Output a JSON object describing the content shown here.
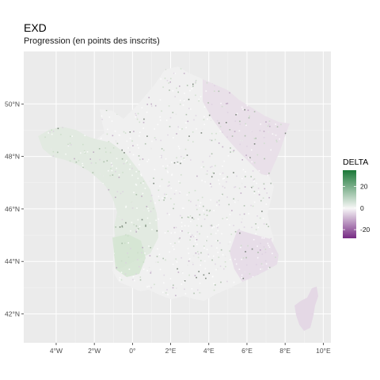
{
  "title": "EXD",
  "subtitle": "Progression (en points des inscrits)",
  "chart_data": {
    "type": "heatmap",
    "description_kind": "choropleth-map",
    "x_ticks": [
      "4°W",
      "2°W",
      "0°",
      "2°E",
      "4°E",
      "6°E",
      "8°E",
      "10°E"
    ],
    "x_tick_values": [
      -4,
      -2,
      0,
      2,
      4,
      6,
      8,
      10
    ],
    "y_ticks": [
      "42°N",
      "44°N",
      "46°N",
      "48°N",
      "50°N"
    ],
    "y_tick_values": [
      42,
      44,
      46,
      48,
      50
    ],
    "xlim": [
      -5.7,
      10.4
    ],
    "ylim": [
      40.9,
      52.0
    ],
    "grid": true,
    "legend": {
      "title": "DELTA",
      "ticks": [
        "20",
        "0",
        "-20"
      ],
      "tick_values": [
        20,
        0,
        -20
      ],
      "range": [
        -28,
        35
      ],
      "colors": [
        "#762a83",
        "#f7f7f7",
        "#1b7837"
      ],
      "placement": "right"
    }
  }
}
